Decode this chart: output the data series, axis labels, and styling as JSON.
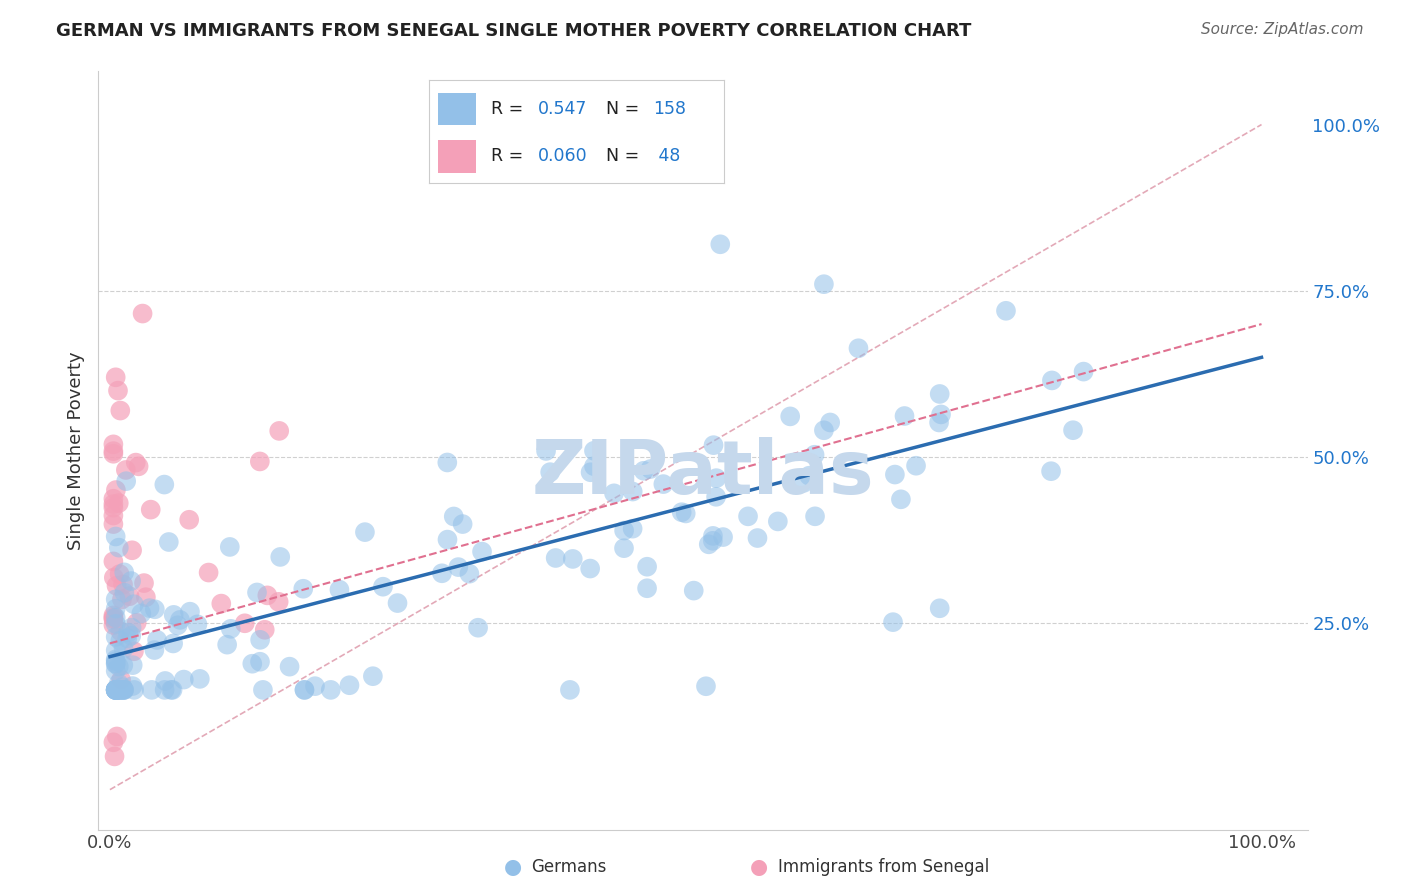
{
  "title": "GERMAN VS IMMIGRANTS FROM SENEGAL SINGLE MOTHER POVERTY CORRELATION CHART",
  "source": "Source: ZipAtlas.com",
  "ylabel": "Single Mother Poverty",
  "blue_color": "#93c0e8",
  "pink_color": "#f4a0b8",
  "blue_line_color": "#2b6cb0",
  "pink_line_color": "#e07090",
  "grid_color": "#d0d0d0",
  "watermark_color": "#c5d8ec",
  "legend_blue_color": "#93c0e8",
  "legend_pink_color": "#f4a0b8",
  "blue_R": "0.547",
  "blue_N": "158",
  "pink_R": "0.060",
  "pink_N": "48",
  "blue_line_x0": 0.0,
  "blue_line_y0": 0.2,
  "blue_line_x1": 1.0,
  "blue_line_y1": 0.65,
  "pink_line_x0": 0.0,
  "pink_line_y0": 0.22,
  "pink_line_x1": 1.0,
  "pink_line_y1": 0.7,
  "diag_color": "#e0a0b0",
  "xlim_min": -0.01,
  "xlim_max": 1.04,
  "ylim_min": -0.06,
  "ylim_max": 1.08
}
